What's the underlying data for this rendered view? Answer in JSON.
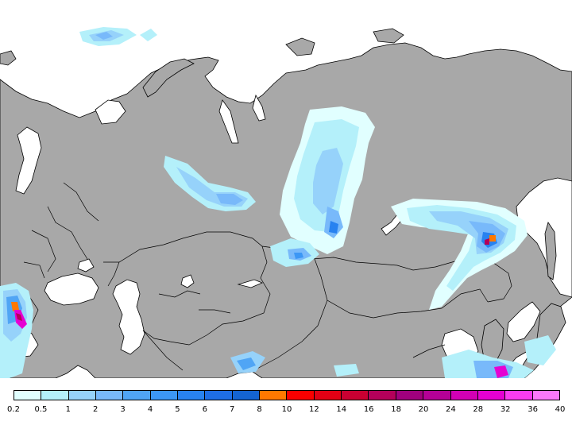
{
  "map": {
    "ocean_color": "#ffffff",
    "land_color": "#a8a8a8",
    "border_color": "#000000"
  },
  "legend": {
    "labels": [
      "0.2",
      "0.5",
      "1",
      "2",
      "3",
      "4",
      "5",
      "6",
      "7",
      "8",
      "10",
      "12",
      "14",
      "16",
      "18",
      "20",
      "24",
      "28",
      "32",
      "36",
      "40"
    ],
    "colors": [
      "#e1ffff",
      "#b4f0fa",
      "#96d2fa",
      "#78b9fa",
      "#50a5f5",
      "#3c97f5",
      "#2882f0",
      "#1e6ee6",
      "#1464d2",
      "#ff7800",
      "#fa0000",
      "#e10014",
      "#c80032",
      "#b4005a",
      "#a0007d",
      "#b40096",
      "#d200b4",
      "#e600d2",
      "#fa3cf0",
      "#fa78fa"
    ]
  }
}
